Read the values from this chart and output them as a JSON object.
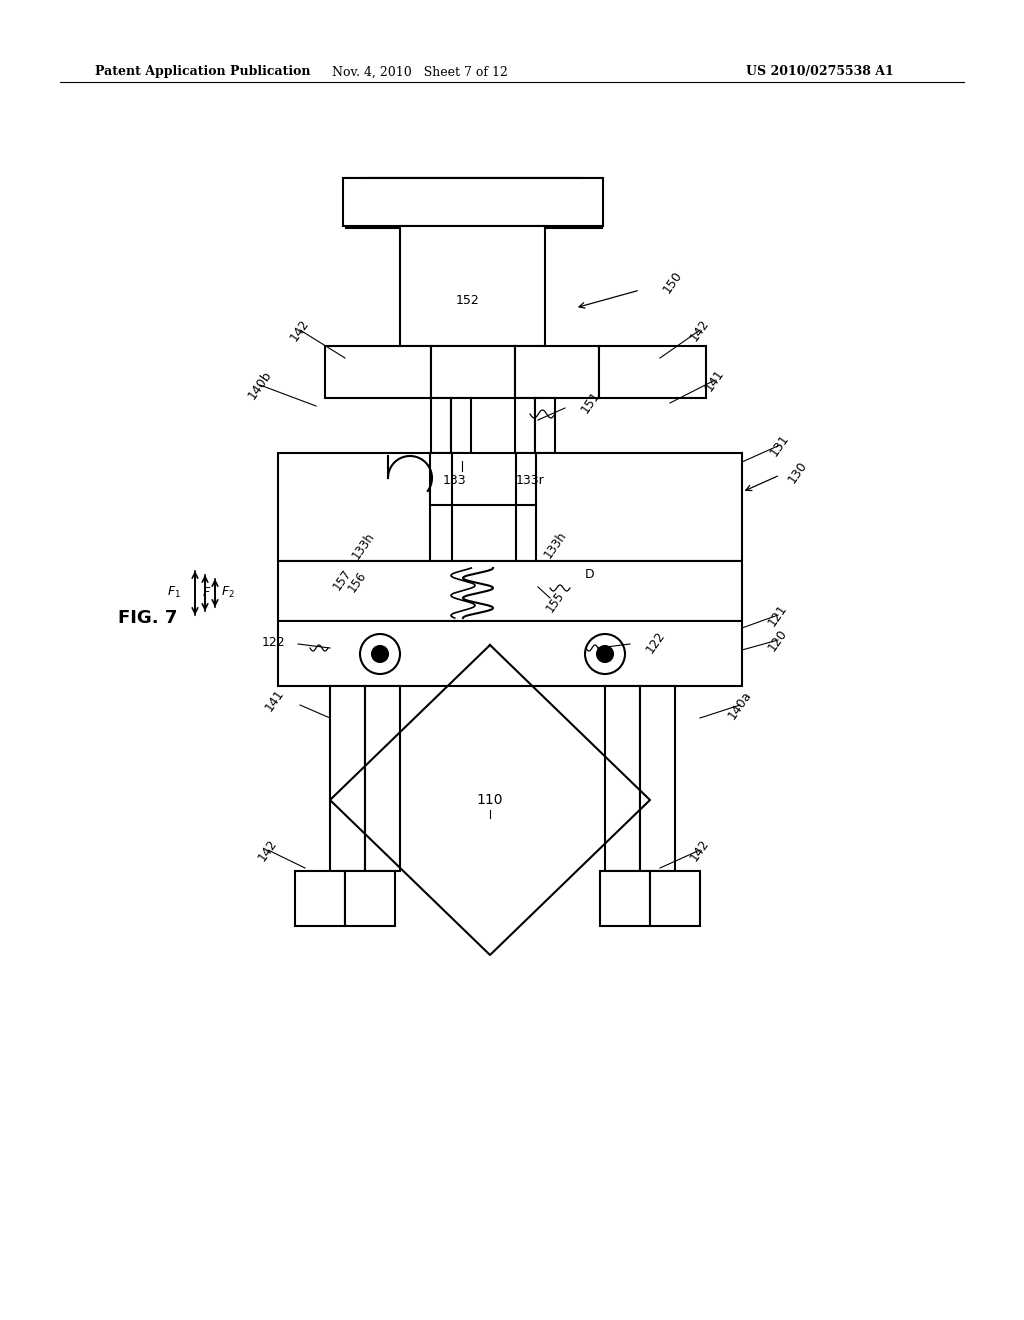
{
  "header_left": "Patent Application Publication",
  "header_mid": "Nov. 4, 2010   Sheet 7 of 12",
  "header_right": "US 2010/0275538 A1",
  "fig_label": "FIG. 7",
  "background": "#ffffff",
  "line_color": "#000000"
}
